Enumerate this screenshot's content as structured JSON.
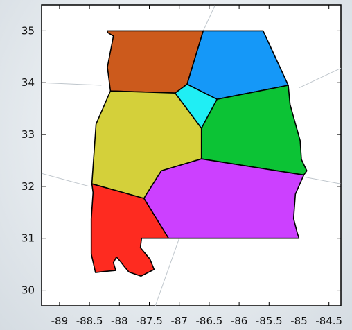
{
  "chart_data": {
    "type": "map",
    "title": "",
    "xlabel": "",
    "ylabel": "",
    "xlim": [
      -89.3,
      -84.3
    ],
    "ylim": [
      29.7,
      35.5
    ],
    "x_ticks": [
      {
        "value": -89,
        "label": "-89"
      },
      {
        "value": -88.5,
        "label": "-88.5"
      },
      {
        "value": -88,
        "label": "-88"
      },
      {
        "value": -87.5,
        "label": "-87.5"
      },
      {
        "value": -87,
        "label": "-87"
      },
      {
        "value": -86.5,
        "label": "-86.5"
      },
      {
        "value": -86,
        "label": "-86"
      },
      {
        "value": -85.5,
        "label": "-85.5"
      },
      {
        "value": -85,
        "label": "-85"
      },
      {
        "value": -84.5,
        "label": "-84.5"
      }
    ],
    "y_ticks": [
      {
        "value": 30,
        "label": "30"
      },
      {
        "value": 31,
        "label": "31"
      },
      {
        "value": 32,
        "label": "32"
      },
      {
        "value": 33,
        "label": "33"
      },
      {
        "value": 34,
        "label": "34"
      },
      {
        "value": 35,
        "label": "35"
      }
    ],
    "background_lines": [
      [
        [
          -89.3,
          34.0
        ],
        [
          -88.3,
          33.95
        ]
      ],
      [
        [
          -85.0,
          33.9
        ],
        [
          -84.3,
          34.28
        ]
      ],
      [
        [
          -89.3,
          32.25
        ],
        [
          -88.5,
          32.0
        ]
      ],
      [
        [
          -85.0,
          32.2
        ],
        [
          -84.3,
          32.05
        ]
      ],
      [
        [
          -87.0,
          31.0
        ],
        [
          -87.4,
          29.7
        ]
      ],
      [
        [
          -86.4,
          35.5
        ],
        [
          -86.6,
          35.0
        ]
      ]
    ],
    "regions": [
      {
        "id": "north-west",
        "color": "#cc5a1c",
        "coords": [
          [
            -88.2,
            35.0
          ],
          [
            -86.6,
            35.0
          ],
          [
            -86.87,
            33.97
          ],
          [
            -87.07,
            33.8
          ],
          [
            -88.15,
            33.84
          ],
          [
            -88.2,
            34.3
          ],
          [
            -88.1,
            34.9
          ],
          [
            -88.2,
            34.97
          ]
        ]
      },
      {
        "id": "north-east",
        "color": "#1598f8",
        "coords": [
          [
            -86.6,
            35.0
          ],
          [
            -85.6,
            35.0
          ],
          [
            -85.18,
            33.95
          ],
          [
            -86.37,
            33.68
          ],
          [
            -86.87,
            33.97
          ]
        ]
      },
      {
        "id": "central-north",
        "color": "#20eef4",
        "coords": [
          [
            -86.87,
            33.97
          ],
          [
            -86.37,
            33.68
          ],
          [
            -86.63,
            33.12
          ],
          [
            -87.07,
            33.8
          ]
        ]
      },
      {
        "id": "east",
        "color": "#0cc335",
        "coords": [
          [
            -86.37,
            33.68
          ],
          [
            -85.18,
            33.95
          ],
          [
            -85.15,
            33.58
          ],
          [
            -84.98,
            32.88
          ],
          [
            -84.96,
            32.52
          ],
          [
            -84.87,
            32.3
          ],
          [
            -84.92,
            32.22
          ],
          [
            -86.63,
            32.53
          ],
          [
            -86.63,
            33.12
          ]
        ]
      },
      {
        "id": "west-central",
        "color": "#d4d03a",
        "coords": [
          [
            -88.15,
            33.84
          ],
          [
            -87.07,
            33.8
          ],
          [
            -86.63,
            33.12
          ],
          [
            -86.63,
            32.53
          ],
          [
            -87.3,
            32.3
          ],
          [
            -87.59,
            31.77
          ],
          [
            -88.46,
            32.05
          ],
          [
            -88.39,
            33.2
          ]
        ]
      },
      {
        "id": "south-central",
        "color": "#cc40ff",
        "coords": [
          [
            -86.63,
            32.53
          ],
          [
            -84.92,
            32.22
          ],
          [
            -85.06,
            31.85
          ],
          [
            -85.09,
            31.38
          ],
          [
            -85.03,
            31.11
          ],
          [
            -85.0,
            31.0
          ],
          [
            -87.18,
            31.0
          ],
          [
            -87.59,
            31.77
          ],
          [
            -87.3,
            32.3
          ]
        ]
      },
      {
        "id": "south-west",
        "color": "#fe2b20",
        "coords": [
          [
            -88.46,
            32.05
          ],
          [
            -87.59,
            31.77
          ],
          [
            -87.18,
            31.0
          ],
          [
            -87.63,
            31.0
          ],
          [
            -87.65,
            30.82
          ],
          [
            -87.49,
            30.6
          ],
          [
            -87.42,
            30.4
          ],
          [
            -87.64,
            30.27
          ],
          [
            -87.84,
            30.35
          ],
          [
            -87.92,
            30.46
          ],
          [
            -87.98,
            30.55
          ],
          [
            -88.05,
            30.64
          ],
          [
            -88.1,
            30.53
          ],
          [
            -88.06,
            30.38
          ],
          [
            -88.25,
            30.36
          ],
          [
            -88.4,
            30.34
          ],
          [
            -88.47,
            30.7
          ],
          [
            -88.47,
            31.37
          ],
          [
            -88.44,
            31.88
          ]
        ]
      }
    ]
  }
}
